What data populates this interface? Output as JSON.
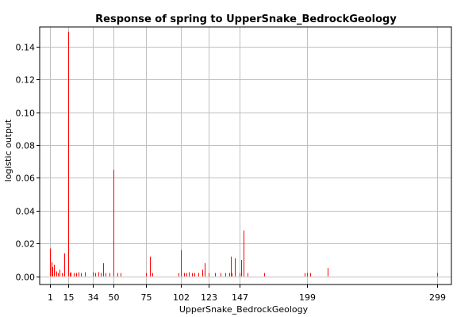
{
  "chart_data": {
    "type": "bar",
    "title": "Response of spring to UpperSnake_BedrockGeology",
    "xlabel": "UpperSnake_BedrockGeology",
    "ylabel": "logistic output",
    "xlim": [
      -7,
      310
    ],
    "ylim": [
      -0.005,
      0.152
    ],
    "xticks": [
      1,
      15,
      34,
      50,
      75,
      102,
      123,
      147,
      199,
      299
    ],
    "yticks": [
      0.0,
      0.02,
      0.04,
      0.06,
      0.08,
      0.1,
      0.12,
      0.14
    ],
    "ytick_labels": [
      "0.00",
      "0.02",
      "0.04",
      "0.06",
      "0.08",
      "0.10",
      "0.12",
      "0.14"
    ],
    "grid": true,
    "bar_color": "#ff0000",
    "x": [
      1,
      2,
      3,
      4,
      6,
      7,
      8,
      10,
      12,
      15,
      16,
      17,
      19,
      21,
      23,
      25,
      28,
      34,
      36,
      38,
      40,
      42,
      44,
      47,
      50,
      53,
      55,
      75,
      78,
      80,
      100,
      102,
      104,
      106,
      108,
      110,
      112,
      115,
      118,
      120,
      123,
      128,
      132,
      136,
      139,
      140,
      141,
      143,
      147,
      148,
      150,
      153,
      166,
      197,
      199,
      201,
      215,
      299
    ],
    "values": [
      0.017,
      0.0085,
      0.0055,
      0.007,
      0.003,
      0.002,
      0.004,
      0.002,
      0.014,
      0.149,
      0.002,
      0.0025,
      0.002,
      0.002,
      0.0025,
      0.002,
      0.0025,
      0.0025,
      0.002,
      0.0025,
      0.002,
      0.008,
      0.002,
      0.002,
      0.065,
      0.002,
      0.002,
      0.002,
      0.012,
      0.002,
      0.002,
      0.016,
      0.002,
      0.002,
      0.0025,
      0.002,
      0.002,
      0.002,
      0.004,
      0.008,
      0.002,
      0.002,
      0.002,
      0.002,
      0.002,
      0.012,
      0.002,
      0.011,
      0.002,
      0.01,
      0.028,
      0.002,
      0.002,
      0.002,
      0.002,
      0.002,
      0.005,
      0.002
    ]
  }
}
